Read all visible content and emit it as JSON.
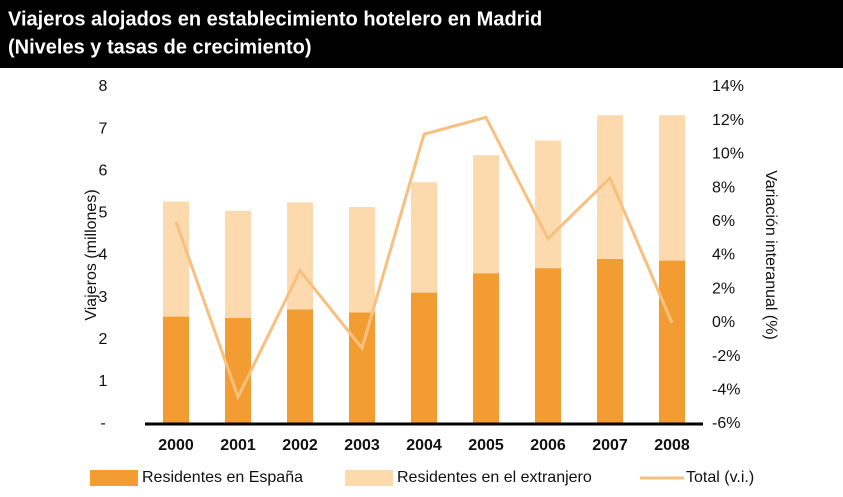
{
  "chart_data": {
    "type": "bar-line",
    "title": [
      "Viajeros alojados en establecimiento hotelero en Madrid",
      "(Niveles y tasas de crecimiento)"
    ],
    "y_label": "Viajeros (millones)",
    "y2_label": "Variación interanual (%)",
    "categories": [
      "2000",
      "2001",
      "2002",
      "2003",
      "2004",
      "2005",
      "2006",
      "2007",
      "2008"
    ],
    "series": [
      {
        "name": "Residentes en España",
        "color": "#f39c32",
        "kind": "bar",
        "values": [
          2.55,
          2.52,
          2.72,
          2.65,
          3.12,
          3.58,
          3.7,
          3.92,
          3.88
        ]
      },
      {
        "name": "Residentes en el extranjero",
        "color": "#fdd9ae",
        "kind": "bar",
        "values": [
          2.73,
          2.54,
          2.54,
          2.5,
          2.62,
          2.8,
          3.03,
          3.41,
          3.45
        ]
      },
      {
        "name": "Total (v.i.)",
        "color": "#f8c07f",
        "kind": "line",
        "axis": "y2",
        "values": [
          6.0,
          -4.4,
          3.1,
          -1.5,
          11.2,
          12.2,
          5.0,
          8.6,
          0.0
        ]
      }
    ],
    "ylim": [
      0,
      8
    ],
    "yticks": [
      {
        "value": 0,
        "label": "-"
      },
      1,
      2,
      3,
      4,
      5,
      6,
      7,
      8
    ],
    "y2lim": [
      -6,
      14
    ],
    "y2ticks": [
      {
        "value": -6,
        "label": "-6%"
      },
      {
        "value": -4,
        "label": "-4%"
      },
      {
        "value": -2,
        "label": "-2%"
      },
      {
        "value": 0,
        "label": "0%"
      },
      {
        "value": 2,
        "label": "2%"
      },
      {
        "value": 4,
        "label": "4%"
      },
      {
        "value": 6,
        "label": "6%"
      },
      {
        "value": 8,
        "label": "8%"
      },
      {
        "value": 10,
        "label": "10%"
      },
      {
        "value": 12,
        "label": "12%"
      },
      {
        "value": 14,
        "label": "14%"
      }
    ]
  }
}
